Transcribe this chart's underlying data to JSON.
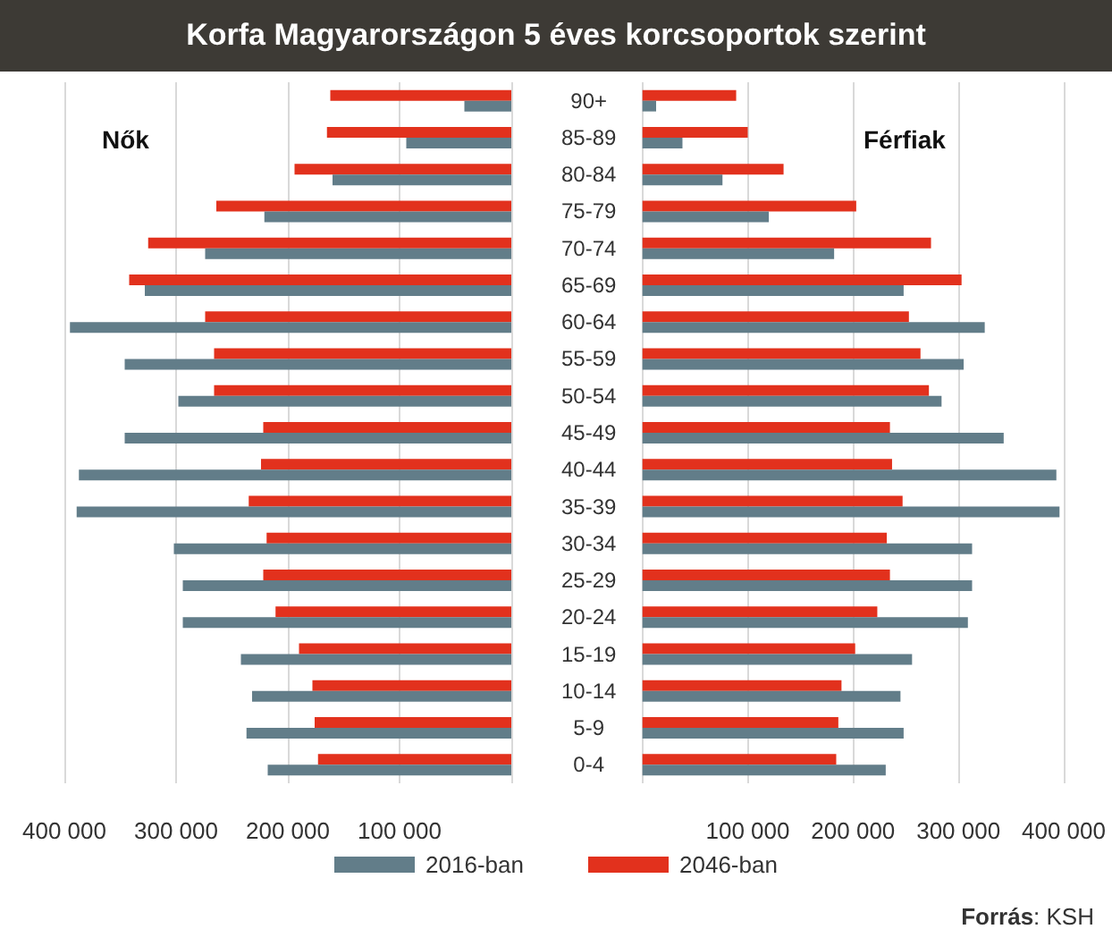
{
  "chart_data": [
    {
      "type": "bar",
      "orientation": "horizontal",
      "title": "Korfa Magyarországon 5 éves korcsoportok szerint",
      "subtitle": "Nők",
      "categories": [
        null,
        null,
        null,
        null,
        null,
        null,
        null,
        null,
        null,
        null,
        null,
        null,
        null,
        null,
        null,
        null,
        null,
        null,
        null
      ],
      "series": [
        {
          "name": "2016-ban",
          "color": "#627d89",
          "values": [
            42000,
            94000,
            160000,
            221000,
            274000,
            328000,
            395000,
            346000,
            298000,
            346000,
            387000,
            389000,
            302000,
            294000,
            294000,
            242000,
            232000,
            237000,
            218000
          ]
        },
        {
          "name": "2046-ban",
          "color": "#e2311d",
          "values": [
            162000,
            165000,
            194000,
            264000,
            325000,
            342000,
            274000,
            266000,
            266000,
            222000,
            224000,
            235000,
            219000,
            222000,
            211000,
            190000,
            178000,
            176000,
            173000
          ]
        }
      ],
      "xlim": [
        400000,
        0
      ],
      "xticks": [
        {
          "value": 400000,
          "label": "400 000"
        },
        {
          "value": 300000,
          "label": "300 000"
        },
        {
          "value": 200000,
          "label": "200 000"
        },
        {
          "value": 100000,
          "label": "100 000"
        },
        {
          "value": 0,
          "label": null
        }
      ],
      "grid": "x",
      "legend": "bottom",
      "tick_labels": "x"
    },
    {
      "type": "bar",
      "orientation": "horizontal",
      "subtitle": "Férfiak",
      "categories": [
        "90+",
        "85-89",
        "80-84",
        "75-79",
        "70-74",
        "65-69",
        "60-64",
        "55-59",
        "50-54",
        "45-49",
        "40-44",
        "35-39",
        "30-34",
        "25-29",
        "20-24",
        "15-19",
        "10-14",
        "5-9",
        "0-4"
      ],
      "series": [
        {
          "name": "2016-ban",
          "color": "#627d89",
          "values": [
            13000,
            38000,
            76000,
            120000,
            182000,
            248000,
            325000,
            305000,
            284000,
            343000,
            393000,
            396000,
            313000,
            313000,
            309000,
            256000,
            245000,
            248000,
            231000
          ]
        },
        {
          "name": "2046-ban",
          "color": "#e2311d",
          "values": [
            89000,
            100000,
            134000,
            203000,
            274000,
            303000,
            253000,
            264000,
            272000,
            235000,
            237000,
            247000,
            232000,
            235000,
            223000,
            202000,
            189000,
            186000,
            184000
          ]
        }
      ],
      "xlim": [
        0,
        400000
      ],
      "xticks": [
        {
          "value": 0,
          "label": null
        },
        {
          "value": 100000,
          "label": "100 000"
        },
        {
          "value": 200000,
          "label": "200 000"
        },
        {
          "value": 300000,
          "label": "300 000"
        },
        {
          "value": 400000,
          "label": "400 000"
        }
      ],
      "grid": "x",
      "annotations": [
        "Forrás: KSH"
      ]
    }
  ]
}
